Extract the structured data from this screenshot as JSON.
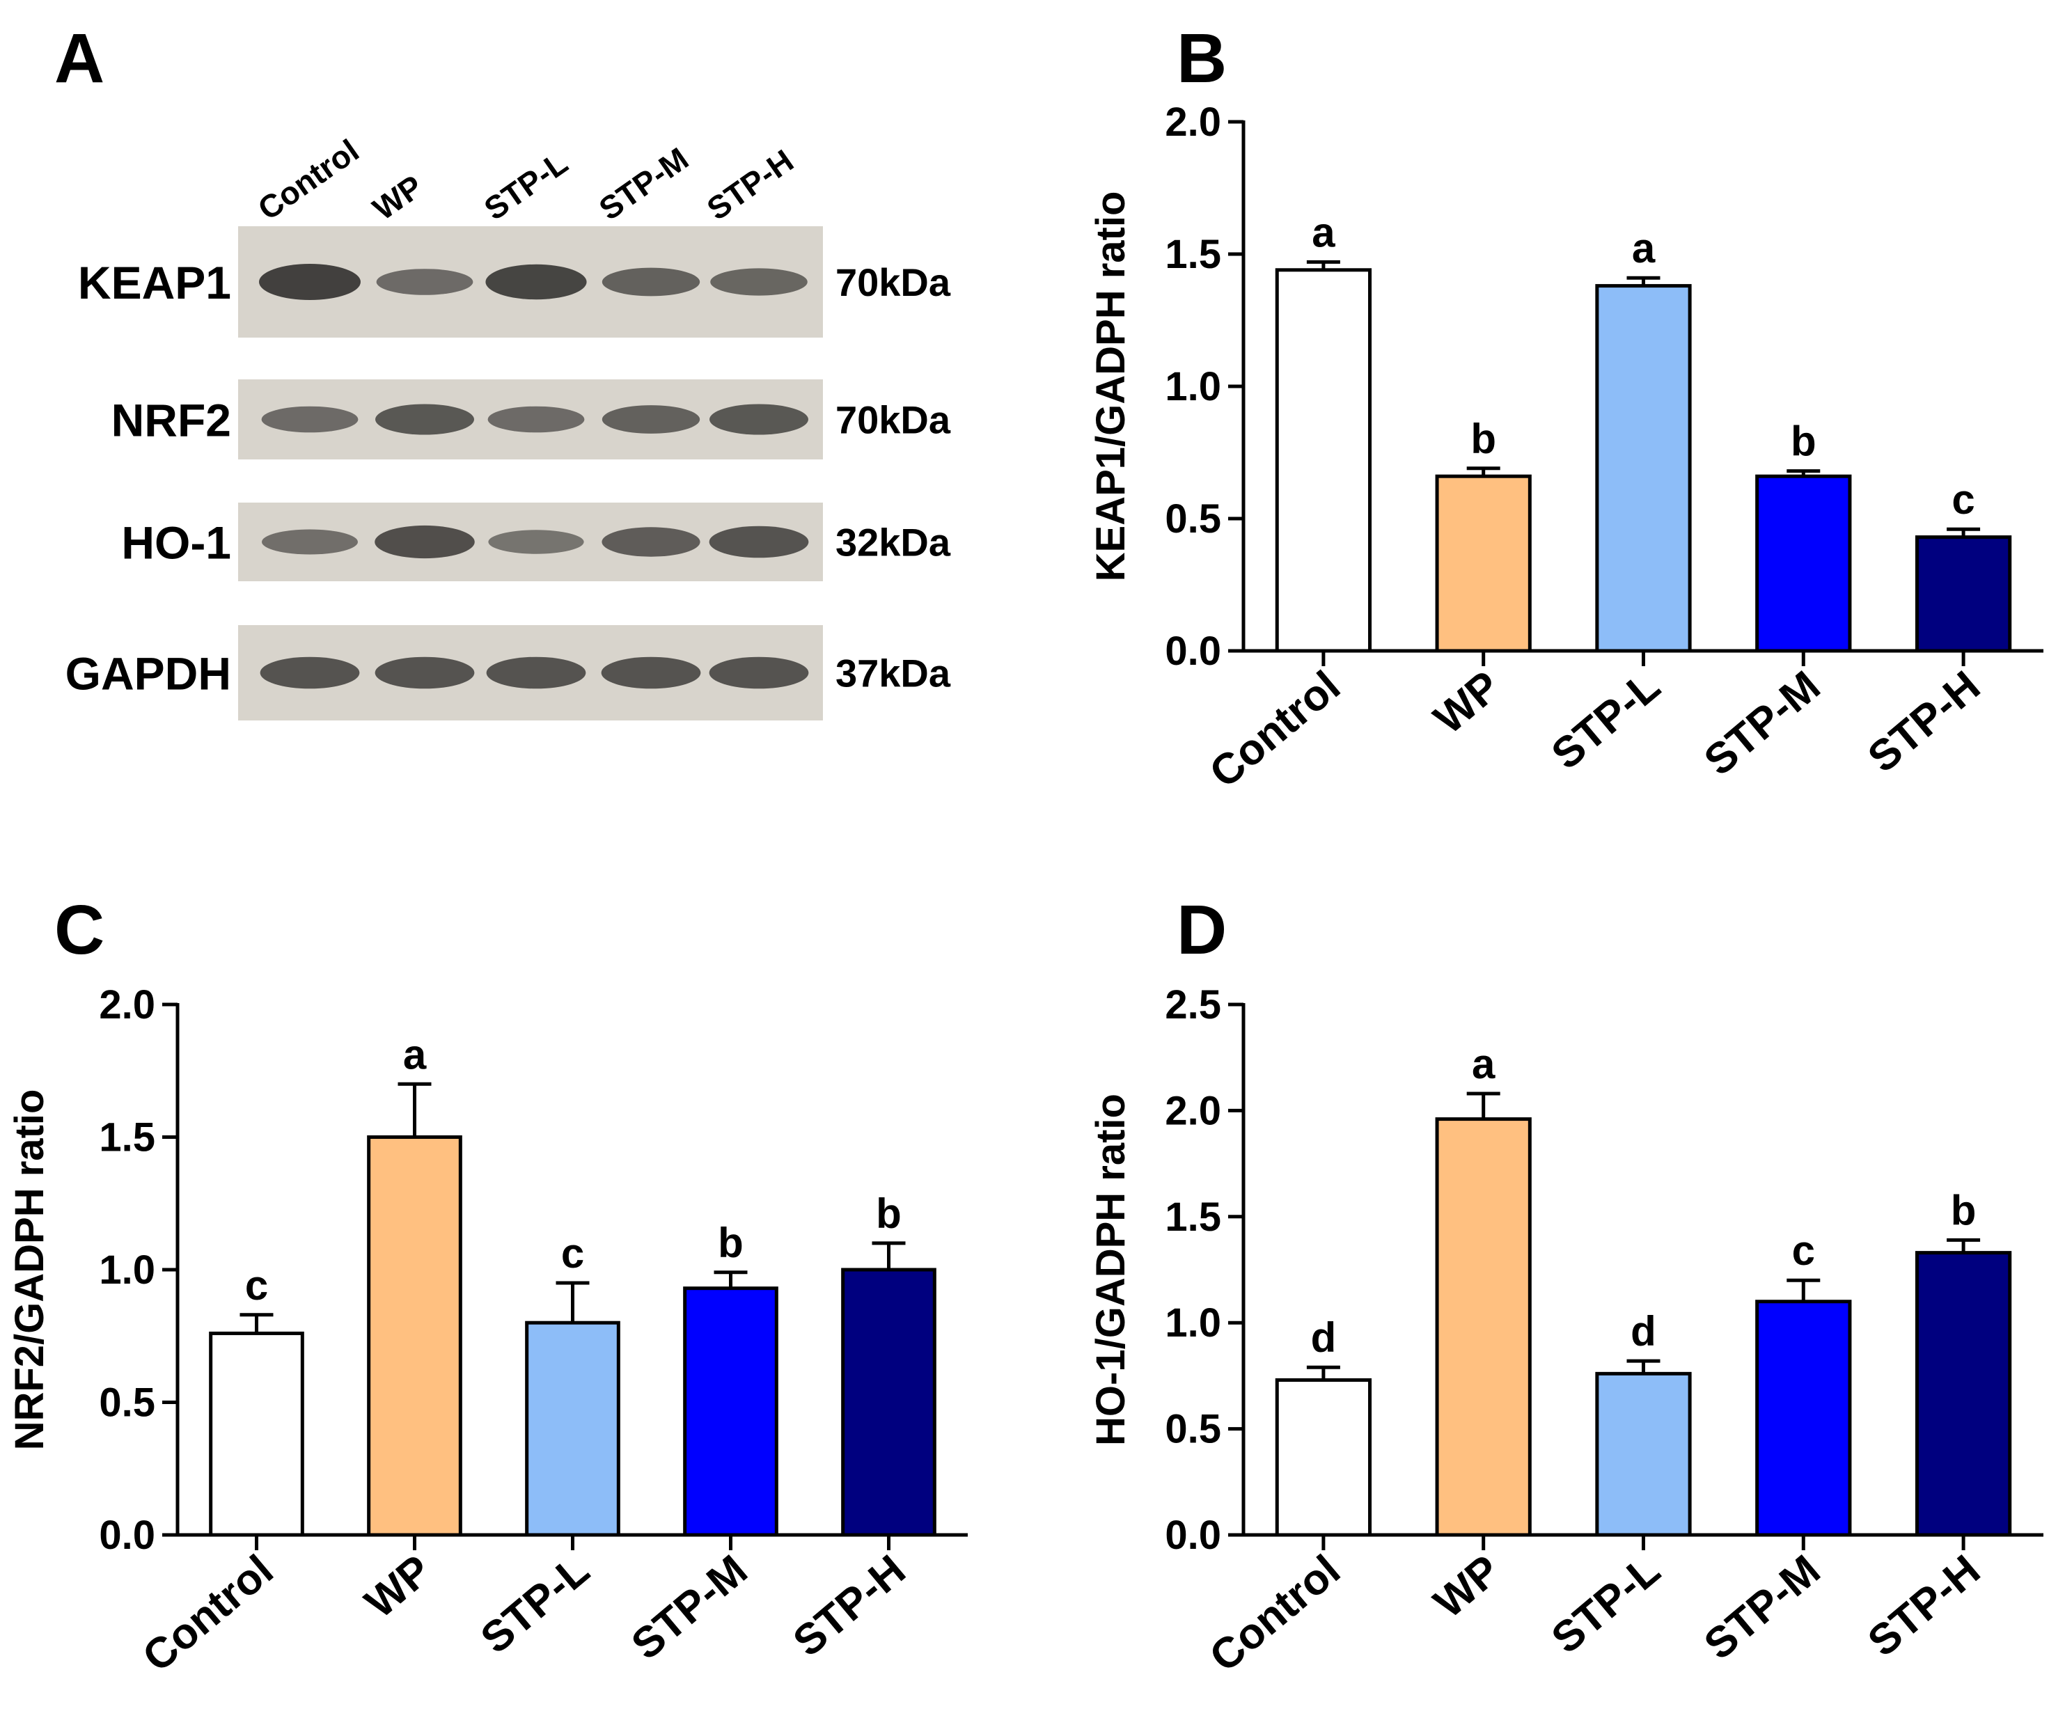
{
  "colors": {
    "Control": "#ffffff",
    "WP": "#ffc080",
    "STP-L": "#8dbdf8",
    "STP-M": "#0000ff",
    "STP-H": "#00007f",
    "axis": "#000000",
    "blot_bg": "#d8d4cc",
    "band": "#3a3836"
  },
  "panel_a": {
    "letter": "A",
    "lane_labels": [
      "Control",
      "WP",
      "STP-L",
      "STP-M",
      "STP-H"
    ],
    "blots": [
      {
        "protein": "KEAP1",
        "size": "70kDa",
        "intensities": [
          1.0,
          0.55,
          0.95,
          0.65,
          0.6
        ]
      },
      {
        "protein": "NRF2",
        "size": "70kDa",
        "intensities": [
          0.55,
          0.75,
          0.55,
          0.65,
          0.75
        ]
      },
      {
        "protein": "HO-1",
        "size": "32kDa",
        "intensities": [
          0.5,
          0.85,
          0.45,
          0.7,
          0.8
        ]
      },
      {
        "protein": "GAPDH",
        "size": "37kDa",
        "intensities": [
          0.8,
          0.8,
          0.8,
          0.8,
          0.8
        ]
      }
    ]
  },
  "chart_data": [
    {
      "panel": "B",
      "type": "bar",
      "categories": [
        "Control",
        "WP",
        "STP-L",
        "STP-M",
        "STP-H"
      ],
      "values": [
        1.44,
        0.66,
        1.38,
        0.66,
        0.43
      ],
      "errors": [
        0.03,
        0.03,
        0.03,
        0.02,
        0.03
      ],
      "letters": [
        "a",
        "b",
        "a",
        "b",
        "c"
      ],
      "ylabel": "KEAP1/GADPH ratio",
      "ylim": [
        0,
        2.0
      ],
      "yticks": [
        "0.0",
        "0.5",
        "1.0",
        "1.5",
        "2.0"
      ]
    },
    {
      "panel": "C",
      "type": "bar",
      "categories": [
        "Control",
        "WP",
        "STP-L",
        "STP-M",
        "STP-H"
      ],
      "values": [
        0.76,
        1.5,
        0.8,
        0.93,
        1.0
      ],
      "errors": [
        0.07,
        0.2,
        0.15,
        0.06,
        0.1
      ],
      "letters": [
        "c",
        "a",
        "c",
        "b",
        "b"
      ],
      "ylabel": "NRF2/GADPH ratio",
      "ylim": [
        0,
        2.0
      ],
      "yticks": [
        "0.0",
        "0.5",
        "1.0",
        "1.5",
        "2.0"
      ]
    },
    {
      "panel": "D",
      "type": "bar",
      "categories": [
        "Control",
        "WP",
        "STP-L",
        "STP-M",
        "STP-H"
      ],
      "values": [
        0.73,
        1.96,
        0.76,
        1.1,
        1.33
      ],
      "errors": [
        0.06,
        0.12,
        0.06,
        0.1,
        0.06
      ],
      "letters": [
        "d",
        "a",
        "d",
        "c",
        "b"
      ],
      "ylabel": "HO-1/GADPH ratio",
      "ylim": [
        0,
        2.5
      ],
      "yticks": [
        "0.0",
        "0.5",
        "1.0",
        "1.5",
        "2.0",
        "2.5"
      ]
    }
  ]
}
